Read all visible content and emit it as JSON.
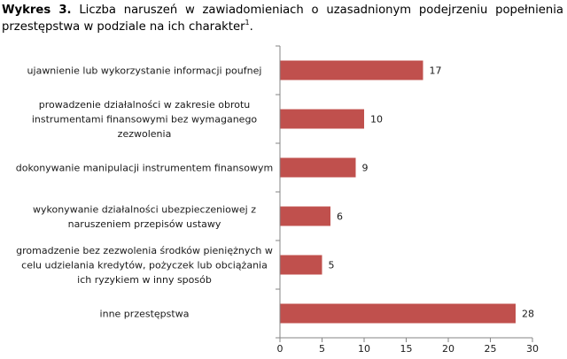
{
  "caption": {
    "prefix": "Wykres 3.",
    "text": " Liczba naruszeń w zawiadomieniach o uzasadnionym podejrzeniu popełnienia przestępstwa w podziale na ich charakter",
    "footnote_ref": "1",
    "suffix": "."
  },
  "chart_data": {
    "type": "bar",
    "orientation": "horizontal",
    "title": "",
    "xlabel": "",
    "ylabel": "",
    "xlim": [
      0,
      30
    ],
    "x_ticks": [
      0,
      5,
      10,
      15,
      20,
      25,
      30
    ],
    "grid": false,
    "legend": "none",
    "bar_color": "#c0504d",
    "categories": [
      "ujawnienie lub wykorzystanie informacji poufnej",
      "prowadzenie działalności w zakresie obrotu instrumentami finansowymi bez wymaganego zezwolenia",
      "dokonywanie manipulacji instrumentem finansowym",
      "wykonywanie działalności ubezpieczeniowej z naruszeniem przepisów ustawy",
      "gromadzenie bez zezwolenia środków pieniężnych w celu udzielania kredytów, pożyczek lub obciążania ich ryzykiem w inny sposób",
      "inne przestępstwa"
    ],
    "category_lines": [
      [
        "ujawnienie lub wykorzystanie informacji poufnej"
      ],
      [
        "prowadzenie działalności w zakresie obrotu",
        "instrumentami finansowymi bez wymaganego",
        "zezwolenia"
      ],
      [
        "dokonywanie manipulacji instrumentem finansowym"
      ],
      [
        "wykonywanie działalności ubezpieczeniowej z",
        "naruszeniem przepisów ustawy"
      ],
      [
        "gromadzenie bez zezwolenia środków pieniężnych w",
        "celu udzielania kredytów, pożyczek lub obciążania",
        "ich ryzykiem w inny sposób"
      ],
      [
        "inne przestępstwa"
      ]
    ],
    "values": [
      17,
      10,
      9,
      6,
      5,
      28
    ]
  }
}
